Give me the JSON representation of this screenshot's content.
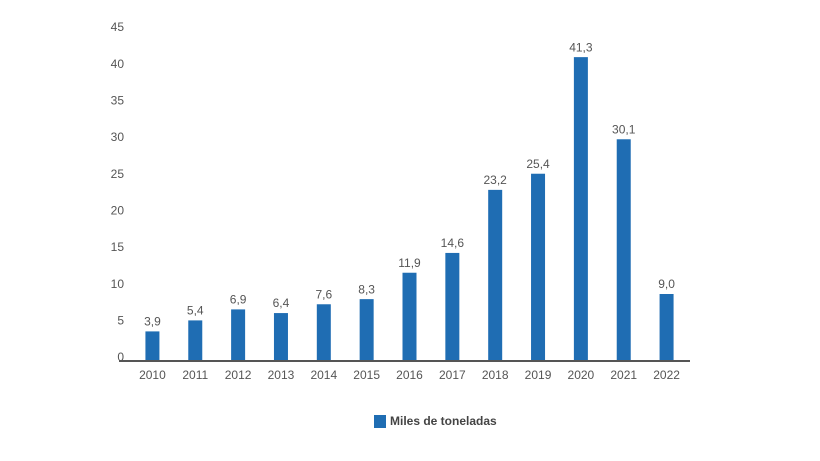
{
  "chart_data": {
    "type": "bar",
    "categories": [
      "2010",
      "2011",
      "2012",
      "2013",
      "2014",
      "2015",
      "2016",
      "2017",
      "2018",
      "2019",
      "2020",
      "2021",
      "2022"
    ],
    "series": [
      {
        "name": "Miles de toneladas",
        "color": "#1f6db3",
        "values": [
          3.9,
          5.4,
          6.9,
          6.4,
          7.6,
          8.3,
          11.9,
          14.6,
          23.2,
          25.4,
          41.3,
          30.1,
          9.0
        ],
        "value_labels": [
          "3,9",
          "5,4",
          "6,9",
          "6,4",
          "7,6",
          "8,3",
          "11,9",
          "14,6",
          "23,2",
          "25,4",
          "41,3",
          "30,1",
          "9,0"
        ]
      }
    ],
    "ylim": [
      0,
      45
    ],
    "yticks": [
      0,
      5,
      10,
      15,
      20,
      25,
      30,
      35,
      40,
      45
    ],
    "grid": false
  }
}
